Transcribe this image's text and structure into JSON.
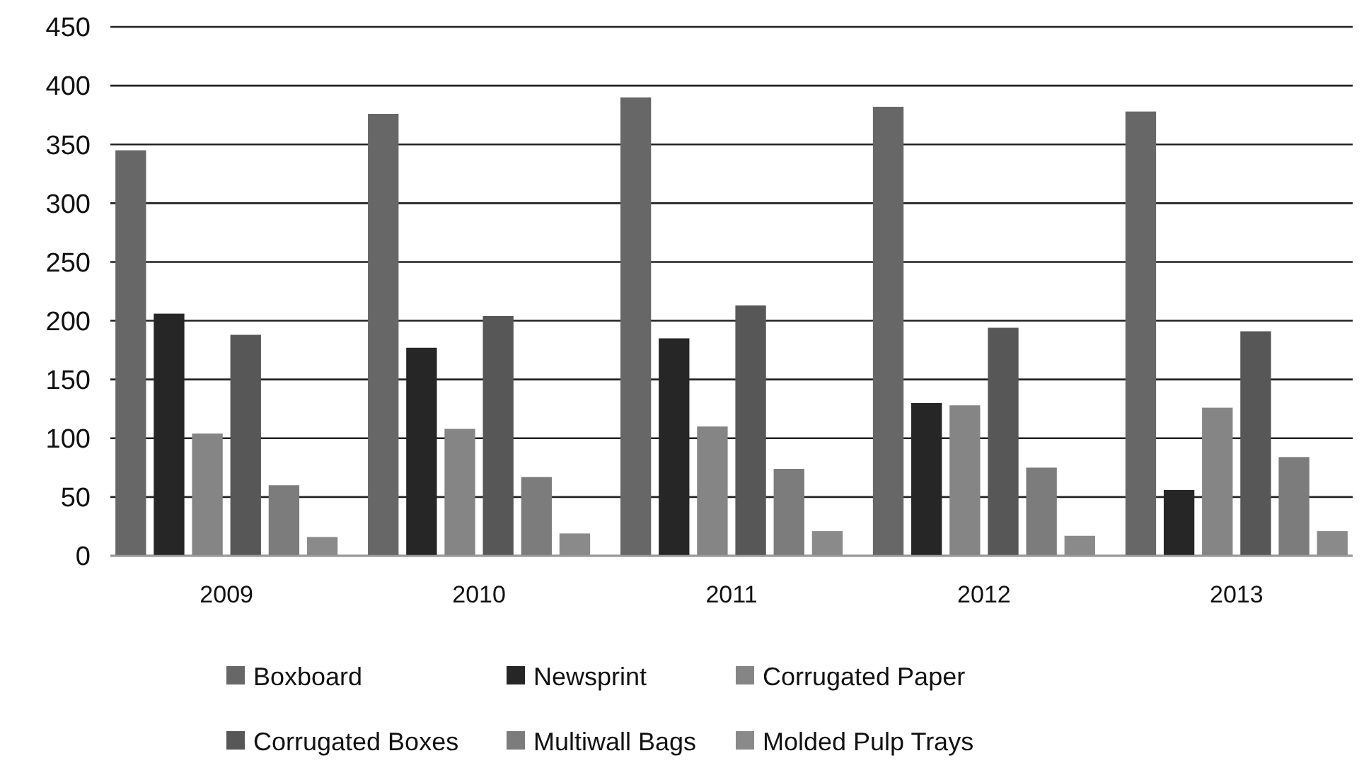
{
  "chart_data": {
    "type": "bar",
    "categories": [
      "2009",
      "2010",
      "2011",
      "2012",
      "2013"
    ],
    "series": [
      {
        "name": "Boxboard",
        "color": "#676767",
        "values": [
          345,
          376,
          390,
          382,
          378
        ]
      },
      {
        "name": "Newsprint",
        "color": "#262626",
        "values": [
          206,
          177,
          185,
          130,
          56
        ]
      },
      {
        "name": "Corrugated Paper",
        "color": "#858585",
        "values": [
          104,
          108,
          110,
          128,
          126
        ]
      },
      {
        "name": "Corrugated Boxes",
        "color": "#575757",
        "values": [
          188,
          204,
          213,
          194,
          191
        ]
      },
      {
        "name": "Multiwall Bags",
        "color": "#7c7c7c",
        "values": [
          60,
          67,
          74,
          75,
          84
        ]
      },
      {
        "name": "Molded Pulp Trays",
        "color": "#8a8a8a",
        "values": [
          16,
          19,
          21,
          17,
          21
        ]
      }
    ],
    "ylim": [
      0,
      450
    ],
    "yticks": [
      0,
      50,
      100,
      150,
      200,
      250,
      300,
      350,
      400,
      450
    ],
    "grid": "y",
    "legend": "bottom"
  }
}
